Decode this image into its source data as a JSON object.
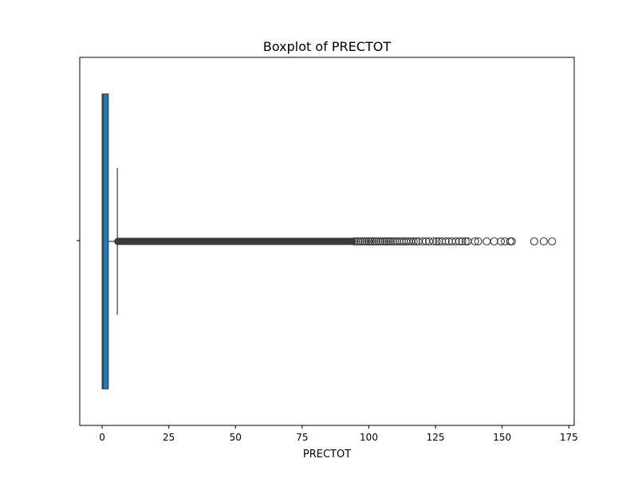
{
  "chart_data": {
    "type": "box",
    "title": "Boxplot of PRECTOT",
    "xlabel": "PRECTOT",
    "ylabel": "",
    "xlim": [
      -8.4,
      177.0
    ],
    "xticks": [
      0,
      25,
      50,
      75,
      100,
      125,
      150,
      175
    ],
    "xtick_labels": [
      "0",
      "25",
      "50",
      "75",
      "100",
      "125",
      "150",
      "175"
    ],
    "grid": false,
    "colors": {
      "box_fill": "#2d76ad",
      "box_edge": "#3b3b3b",
      "whisker": "#3b3b3b",
      "flier_edge": "#3b3b3b"
    },
    "box": {
      "whisker_low": 0.0,
      "q1": 0.0,
      "median": 0.4,
      "q3": 2.3,
      "whisker_high": 5.7
    },
    "outlier_dense_range": [
      5.7,
      94.0
    ],
    "outliers": [
      94.5,
      95.2,
      96.0,
      96.8,
      97.6,
      98.4,
      99.1,
      99.9,
      100.6,
      101.3,
      102.1,
      102.8,
      103.6,
      104.4,
      105.2,
      106.0,
      106.7,
      107.5,
      108.2,
      109.0,
      109.8,
      110.6,
      111.5,
      112.3,
      113.1,
      114.0,
      114.9,
      115.8,
      116.8,
      117.7,
      118.6,
      120.2,
      121.4,
      122.6,
      124.2,
      125.4,
      126.3,
      127.4,
      128.8,
      130.0,
      131.2,
      132.6,
      133.9,
      135.0,
      136.3,
      137.1,
      139.8,
      141.0,
      144.2,
      147.0,
      149.5,
      151.0,
      153.0,
      153.6,
      162.0,
      165.6,
      168.7
    ]
  }
}
